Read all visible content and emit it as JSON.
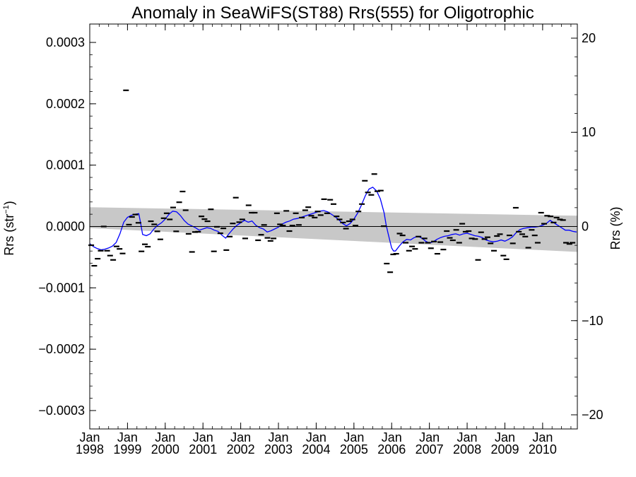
{
  "chart_data": {
    "type": "line",
    "title": "Anomaly in SeaWiFS(ST88) Rrs(555) for Oligotrophic",
    "ylabel_main": "Rrs (str",
    "ylabel_sup": "−1",
    "ylabel_close": ")",
    "y2label": "Rrs (%)",
    "xlim": [
      1998.0,
      2010.92
    ],
    "ylim": [
      -0.00033,
      0.00033
    ],
    "y2lim": [
      -21.5,
      21.5
    ],
    "grid": false,
    "y_ticks": [
      {
        "v": 0.0003,
        "label": "0.0003"
      },
      {
        "v": 0.0002,
        "label": "0.0002"
      },
      {
        "v": 0.0001,
        "label": "0.0001"
      },
      {
        "v": 0.0,
        "label": "0.0000"
      },
      {
        "v": -0.0001,
        "label": "−0.0001"
      },
      {
        "v": -0.0002,
        "label": "−0.0002"
      },
      {
        "v": -0.0003,
        "label": "−0.0003"
      }
    ],
    "y2_ticks": [
      {
        "v": 20,
        "label": "20"
      },
      {
        "v": 10,
        "label": "10"
      },
      {
        "v": 0,
        "label": "0"
      },
      {
        "v": -10,
        "label": "−10"
      },
      {
        "v": -20,
        "label": "−20"
      }
    ],
    "x_ticks": [
      {
        "v": 1998,
        "month": "Jan",
        "year": "1998"
      },
      {
        "v": 1999,
        "month": "Jan",
        "year": "1999"
      },
      {
        "v": 2000,
        "month": "Jan",
        "year": "2000"
      },
      {
        "v": 2001,
        "month": "Jan",
        "year": "2001"
      },
      {
        "v": 2002,
        "month": "Jan",
        "year": "2002"
      },
      {
        "v": 2003,
        "month": "Jan",
        "year": "2003"
      },
      {
        "v": 2004,
        "month": "Jan",
        "year": "2004"
      },
      {
        "v": 2005,
        "month": "Jan",
        "year": "2005"
      },
      {
        "v": 2006,
        "month": "Jan",
        "year": "2006"
      },
      {
        "v": 2007,
        "month": "Jan",
        "year": "2007"
      },
      {
        "v": 2008,
        "month": "Jan",
        "year": "2008"
      },
      {
        "v": 2009,
        "month": "Jan",
        "year": "2009"
      },
      {
        "v": 2010,
        "month": "Jan",
        "year": "2010"
      }
    ],
    "zero_line": 0.0,
    "trend_band": {
      "color": "#c8c8c8",
      "start": {
        "x": 1998.0,
        "upper": 3.15e-05,
        "lower": -2.5e-06
      },
      "end": {
        "x": 2010.92,
        "upper": 1.75e-05,
        "lower": -4.15e-05
      }
    },
    "anomaly_points": {
      "color": "#000000",
      "marker": "dash",
      "values": [
        [
          1998.04,
          -3.05e-05
        ],
        [
          1998.12,
          -6.4e-05
        ],
        [
          1998.21,
          -5.25e-05
        ],
        [
          1998.29,
          -3.95e-05
        ],
        [
          1998.37,
          0.0
        ],
        [
          1998.46,
          -3.95e-05
        ],
        [
          1998.54,
          -4.75e-05
        ],
        [
          1998.62,
          -5.45e-05
        ],
        [
          1998.71,
          -3.25e-05
        ],
        [
          1998.79,
          -3.65e-05
        ],
        [
          1998.87,
          -4.4e-05
        ],
        [
          1998.96,
          0.000222
        ],
        [
          1999.04,
          3e-06
        ],
        [
          1999.12,
          1.55e-05
        ],
        [
          1999.21,
          1.95e-05
        ],
        [
          1999.29,
          6e-06
        ],
        [
          1999.37,
          -4.05e-05
        ],
        [
          1999.46,
          -2.9e-05
        ],
        [
          1999.54,
          -3.3e-05
        ],
        [
          1999.62,
          8.5e-06
        ],
        [
          1999.71,
          3.5e-06
        ],
        [
          1999.79,
          -8e-06
        ],
        [
          1999.87,
          -2.1e-05
        ],
        [
          1999.96,
          1.35e-05
        ],
        [
          2000.04,
          2.15e-05
        ],
        [
          2000.12,
          1.15e-05
        ],
        [
          2000.21,
          3.1e-05
        ],
        [
          2000.29,
          -8e-06
        ],
        [
          2000.37,
          3.95e-05
        ],
        [
          2000.46,
          5.7e-05
        ],
        [
          2000.54,
          2.65e-05
        ],
        [
          2000.62,
          -1.2e-05
        ],
        [
          2000.71,
          -4.15e-05
        ],
        [
          2000.79,
          -9e-06
        ],
        [
          2000.87,
          -8.5e-06
        ],
        [
          2000.96,
          1.65e-05
        ],
        [
          2001.04,
          1.2e-05
        ],
        [
          2001.12,
          8.5e-06
        ],
        [
          2001.21,
          2.8e-05
        ],
        [
          2001.29,
          -4.05e-05
        ],
        [
          2001.37,
          -5e-07
        ],
        [
          2001.46,
          -1.1e-05
        ],
        [
          2001.54,
          -3e-06
        ],
        [
          2001.62,
          -3.85e-05
        ],
        [
          2001.71,
          -1.65e-05
        ],
        [
          2001.79,
          5e-06
        ],
        [
          2001.87,
          4.7e-05
        ],
        [
          2001.96,
          7e-06
        ],
        [
          2002.04,
          1.15e-05
        ],
        [
          2002.12,
          -1.95e-05
        ],
        [
          2002.21,
          3.45e-05
        ],
        [
          2002.29,
          2.25e-05
        ],
        [
          2002.37,
          2.25e-05
        ],
        [
          2002.46,
          -2.25e-05
        ],
        [
          2002.54,
          -1.35e-05
        ],
        [
          2002.62,
          2.5e-06
        ],
        [
          2002.71,
          -1.85e-05
        ],
        [
          2002.79,
          -2.35e-05
        ],
        [
          2002.87,
          -1.95e-05
        ],
        [
          2002.96,
          2.15e-05
        ],
        [
          2003.04,
          3.5e-06
        ],
        [
          2003.12,
          1.5e-06
        ],
        [
          2003.21,
          2.55e-05
        ],
        [
          2003.29,
          -7.5e-06
        ],
        [
          2003.37,
          1.5e-06
        ],
        [
          2003.46,
          2.15e-05
        ],
        [
          2003.54,
          2.5e-06
        ],
        [
          2003.62,
          1.45e-05
        ],
        [
          2003.71,
          2.65e-05
        ],
        [
          2003.79,
          3.15e-05
        ],
        [
          2003.87,
          1.75e-05
        ],
        [
          2003.96,
          1.45e-05
        ],
        [
          2004.04,
          2.45e-05
        ],
        [
          2004.12,
          1.85e-05
        ],
        [
          2004.21,
          4.45e-05
        ],
        [
          2004.29,
          2.15e-05
        ],
        [
          2004.37,
          4.35e-05
        ],
        [
          2004.46,
          3.65e-05
        ],
        [
          2004.54,
          1.65e-05
        ],
        [
          2004.62,
          1.15e-05
        ],
        [
          2004.71,
          6.5e-06
        ],
        [
          2004.79,
          -3.5e-06
        ],
        [
          2004.87,
          8.5e-06
        ],
        [
          2004.96,
          1.15e-05
        ],
        [
          2005.04,
          1.5e-06
        ],
        [
          2005.12,
          2.45e-05
        ],
        [
          2005.21,
          3.65e-05
        ],
        [
          2005.29,
          7.45e-05
        ],
        [
          2005.37,
          5.55e-05
        ],
        [
          2005.46,
          5.15e-05
        ],
        [
          2005.54,
          8.55e-05
        ],
        [
          2005.62,
          5.75e-05
        ],
        [
          2005.71,
          5.85e-05
        ],
        [
          2005.79,
          5e-07
        ],
        [
          2005.87,
          -6.05e-05
        ],
        [
          2005.96,
          -7.45e-05
        ],
        [
          2006.04,
          -4.55e-05
        ],
        [
          2006.12,
          -4.45e-05
        ],
        [
          2006.21,
          -1.15e-05
        ],
        [
          2006.29,
          -1.45e-05
        ],
        [
          2006.37,
          -2.65e-05
        ],
        [
          2006.46,
          -3.95e-05
        ],
        [
          2006.54,
          -3.25e-05
        ],
        [
          2006.62,
          -3.65e-05
        ],
        [
          2006.71,
          -1.65e-05
        ],
        [
          2006.79,
          -2.65e-05
        ],
        [
          2006.87,
          -1.95e-05
        ],
        [
          2006.96,
          -2.65e-05
        ],
        [
          2007.04,
          -3.55e-05
        ],
        [
          2007.12,
          -2.45e-05
        ],
        [
          2007.21,
          -4.45e-05
        ],
        [
          2007.29,
          -2.55e-05
        ],
        [
          2007.37,
          -3.75e-05
        ],
        [
          2007.46,
          -7.5e-06
        ],
        [
          2007.54,
          -1.85e-05
        ],
        [
          2007.62,
          -2.25e-05
        ],
        [
          2007.71,
          -5.5e-06
        ],
        [
          2007.79,
          -2.65e-05
        ],
        [
          2007.87,
          4.5e-06
        ],
        [
          2007.96,
          -8.5e-06
        ],
        [
          2008.04,
          -7.5e-06
        ],
        [
          2008.12,
          -1.95e-05
        ],
        [
          2008.21,
          -2.05e-05
        ],
        [
          2008.29,
          -5.45e-05
        ],
        [
          2008.37,
          -9.5e-06
        ],
        [
          2008.46,
          -2.05e-05
        ],
        [
          2008.54,
          -1.75e-05
        ],
        [
          2008.62,
          -2.75e-05
        ],
        [
          2008.71,
          -3.95e-05
        ],
        [
          2008.79,
          -1.55e-05
        ],
        [
          2008.87,
          -1.25e-05
        ],
        [
          2008.96,
          -4.75e-05
        ],
        [
          2009.04,
          -5.35e-05
        ],
        [
          2009.12,
          -1.45e-05
        ],
        [
          2009.21,
          -2.75e-05
        ],
        [
          2009.29,
          3.05e-05
        ],
        [
          2009.37,
          -8.5e-06
        ],
        [
          2009.46,
          -1.25e-05
        ],
        [
          2009.54,
          -1.65e-05
        ],
        [
          2009.62,
          -3.45e-05
        ],
        [
          2009.71,
          -5.5e-06
        ],
        [
          2009.79,
          -1.45e-05
        ],
        [
          2009.87,
          -2.65e-05
        ],
        [
          2009.96,
          2.25e-05
        ],
        [
          2010.04,
          4.5e-06
        ],
        [
          2010.12,
          1.75e-05
        ],
        [
          2010.21,
          1.65e-05
        ],
        [
          2010.29,
          6.5e-06
        ],
        [
          2010.37,
          1.45e-05
        ],
        [
          2010.46,
          1.15e-05
        ],
        [
          2010.54,
          1.05e-05
        ],
        [
          2010.62,
          -2.65e-05
        ],
        [
          2010.71,
          -2.85e-05
        ],
        [
          2010.79,
          -2.65e-05
        ]
      ]
    },
    "smoothed_series": {
      "color": "#0000ff",
      "values": [
        [
          1998.0,
          -2.8e-05
        ],
        [
          1998.1,
          -3.3e-05
        ],
        [
          1998.2,
          -3.6e-05
        ],
        [
          1998.3,
          -3.8e-05
        ],
        [
          1998.4,
          -3.7e-05
        ],
        [
          1998.5,
          -3.5e-05
        ],
        [
          1998.6,
          -3.2e-05
        ],
        [
          1998.7,
          -2.6e-05
        ],
        [
          1998.8,
          -1.2e-05
        ],
        [
          1998.9,
          7e-06
        ],
        [
          1999.0,
          1.5e-05
        ],
        [
          1999.1,
          1.8e-05
        ],
        [
          1999.2,
          2e-05
        ],
        [
          1999.3,
          2.1e-05
        ],
        [
          1999.35,
          5e-06
        ],
        [
          1999.4,
          -1.3e-05
        ],
        [
          1999.5,
          -1.5e-05
        ],
        [
          1999.6,
          -1.2e-05
        ],
        [
          1999.7,
          -4e-06
        ],
        [
          1999.8,
          2e-06
        ],
        [
          1999.9,
          6e-06
        ],
        [
          2000.0,
          1.2e-05
        ],
        [
          2000.1,
          2e-05
        ],
        [
          2000.2,
          2.5e-05
        ],
        [
          2000.3,
          2.4e-05
        ],
        [
          2000.4,
          1.8e-05
        ],
        [
          2000.5,
          1e-05
        ],
        [
          2000.6,
          4e-06
        ],
        [
          2000.7,
          1e-06
        ],
        [
          2000.8,
          -2e-06
        ],
        [
          2000.9,
          -6e-06
        ],
        [
          2001.0,
          -4e-06
        ],
        [
          2001.1,
          -2e-06
        ],
        [
          2001.2,
          -3e-06
        ],
        [
          2001.3,
          -6e-06
        ],
        [
          2001.4,
          -8e-06
        ],
        [
          2001.5,
          -1.4e-05
        ],
        [
          2001.6,
          -1.9e-05
        ],
        [
          2001.7,
          -1.1e-05
        ],
        [
          2001.8,
          -4e-06
        ],
        [
          2001.9,
          2e-06
        ],
        [
          2002.0,
          6e-06
        ],
        [
          2002.1,
          1e-05
        ],
        [
          2002.2,
          7e-06
        ],
        [
          2002.3,
          9e-06
        ],
        [
          2002.4,
          2e-06
        ],
        [
          2002.5,
          -2e-06
        ],
        [
          2002.6,
          -4e-06
        ],
        [
          2002.7,
          -9e-06
        ],
        [
          2002.8,
          -7e-06
        ],
        [
          2002.9,
          -4e-06
        ],
        [
          2003.0,
          -1e-06
        ],
        [
          2003.1,
          4e-06
        ],
        [
          2003.2,
          7e-06
        ],
        [
          2003.3,
          9e-06
        ],
        [
          2003.4,
          1.2e-05
        ],
        [
          2003.5,
          1.3e-05
        ],
        [
          2003.6,
          1.5e-05
        ],
        [
          2003.7,
          1.7e-05
        ],
        [
          2003.8,
          1.9e-05
        ],
        [
          2003.9,
          2.1e-05
        ],
        [
          2004.0,
          2.3e-05
        ],
        [
          2004.1,
          2.5e-05
        ],
        [
          2004.2,
          2.6e-05
        ],
        [
          2004.3,
          2.4e-05
        ],
        [
          2004.4,
          2e-05
        ],
        [
          2004.5,
          1.6e-05
        ],
        [
          2004.6,
          1.1e-05
        ],
        [
          2004.7,
          5e-06
        ],
        [
          2004.8,
          1e-06
        ],
        [
          2004.9,
          5e-06
        ],
        [
          2005.0,
          1.2e-05
        ],
        [
          2005.1,
          2.2e-05
        ],
        [
          2005.2,
          3.5e-05
        ],
        [
          2005.3,
          5e-05
        ],
        [
          2005.4,
          6.1e-05
        ],
        [
          2005.5,
          6.4e-05
        ],
        [
          2005.6,
          5.8e-05
        ],
        [
          2005.7,
          4.5e-05
        ],
        [
          2005.8,
          2.2e-05
        ],
        [
          2005.85,
          4e-06
        ],
        [
          2005.9,
          -1e-05
        ],
        [
          2006.0,
          -3.5e-05
        ],
        [
          2006.05,
          -4e-05
        ],
        [
          2006.1,
          -4e-05
        ],
        [
          2006.2,
          -3.2e-05
        ],
        [
          2006.3,
          -2.5e-05
        ],
        [
          2006.4,
          -2.1e-05
        ],
        [
          2006.5,
          -2.2e-05
        ],
        [
          2006.6,
          -1.8e-05
        ],
        [
          2006.7,
          -1.6e-05
        ],
        [
          2006.8,
          -1.9e-05
        ],
        [
          2006.9,
          -2.4e-05
        ],
        [
          2007.0,
          -2.7e-05
        ],
        [
          2007.1,
          -2.5e-05
        ],
        [
          2007.2,
          -2.1e-05
        ],
        [
          2007.3,
          -1.8e-05
        ],
        [
          2007.4,
          -1.6e-05
        ],
        [
          2007.5,
          -1.5e-05
        ],
        [
          2007.6,
          -1.3e-05
        ],
        [
          2007.7,
          -1.2e-05
        ],
        [
          2007.8,
          -1.4e-05
        ],
        [
          2007.9,
          -1.2e-05
        ],
        [
          2008.0,
          -1.1e-05
        ],
        [
          2008.1,
          -1.3e-05
        ],
        [
          2008.2,
          -1.5e-05
        ],
        [
          2008.3,
          -1.6e-05
        ],
        [
          2008.4,
          -1.8e-05
        ],
        [
          2008.5,
          -2.2e-05
        ],
        [
          2008.6,
          -2.4e-05
        ],
        [
          2008.7,
          -2.5e-05
        ],
        [
          2008.8,
          -2.4e-05
        ],
        [
          2008.9,
          -2.2e-05
        ],
        [
          2009.0,
          -2.4e-05
        ],
        [
          2009.1,
          -2.1e-05
        ],
        [
          2009.2,
          -1.7e-05
        ],
        [
          2009.3,
          -1e-05
        ],
        [
          2009.4,
          -5e-06
        ],
        [
          2009.5,
          -3e-06
        ],
        [
          2009.6,
          -2e-06
        ],
        [
          2009.7,
          -1e-06
        ],
        [
          2009.8,
          -1e-06
        ],
        [
          2009.9,
          0.0
        ],
        [
          2010.0,
          2e-06
        ],
        [
          2010.1,
          5e-06
        ],
        [
          2010.2,
          1e-05
        ],
        [
          2010.3,
          6e-06
        ],
        [
          2010.4,
          2e-06
        ],
        [
          2010.5,
          -2e-06
        ],
        [
          2010.6,
          -6e-06
        ],
        [
          2010.7,
          -6e-06
        ],
        [
          2010.8,
          -8e-06
        ],
        [
          2010.9,
          -9e-06
        ]
      ]
    }
  }
}
